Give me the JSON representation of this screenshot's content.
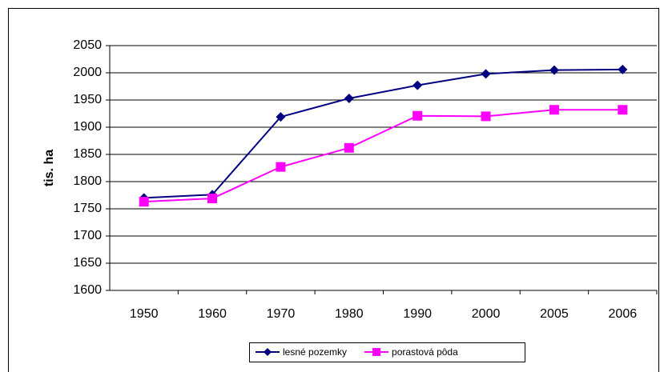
{
  "chart_data": {
    "type": "line",
    "ylabel": "tis. ha",
    "categories": [
      "1950",
      "1960",
      "1970",
      "1980",
      "1990",
      "2000",
      "2005",
      "2006"
    ],
    "series": [
      {
        "name": "lesné pozemky",
        "color": "#000080",
        "marker": "diamond",
        "values": [
          1770,
          1776,
          1919,
          1953,
          1977,
          1998,
          2005,
          2006
        ]
      },
      {
        "name": "porastová pôda",
        "color": "#ff00ff",
        "marker": "square",
        "values": [
          1763,
          1769,
          1827,
          1862,
          1921,
          1920,
          1932,
          1932
        ]
      }
    ],
    "ylim": [
      1600,
      2050
    ],
    "yticks": [
      1600,
      1650,
      1700,
      1750,
      1800,
      1850,
      1900,
      1950,
      2000,
      2050
    ],
    "grid": true,
    "legend": "bottom"
  }
}
